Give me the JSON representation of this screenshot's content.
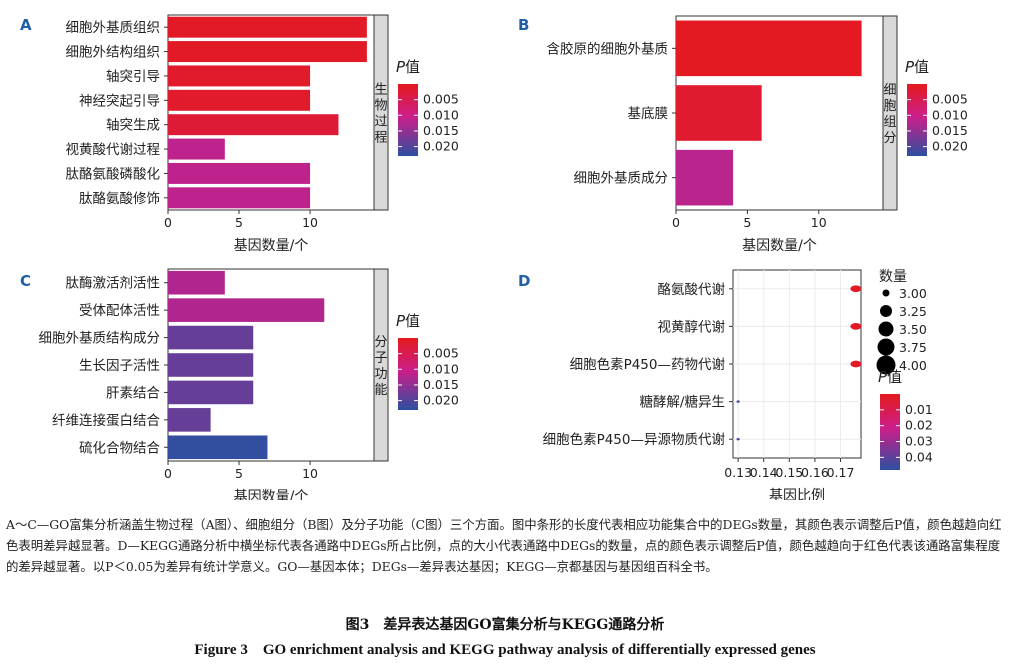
{
  "chart_data": [
    {
      "panel_label": "A",
      "type": "bar",
      "orientation": "horizontal",
      "facet_label": "生物过程",
      "categories": [
        "细胞外基质组织",
        "细胞外结构组织",
        "轴突引导",
        "神经突起引导",
        "轴突生成",
        "视黄酸代谢过程",
        "肽酪氨酸磷酸化",
        "肽酪氨酸修饰"
      ],
      "values": [
        14,
        14,
        10,
        10,
        12,
        4,
        10,
        10
      ],
      "p_values": [
        0.0008,
        0.0008,
        0.0015,
        0.0015,
        0.0025,
        0.0115,
        0.0115,
        0.0115
      ],
      "xlabel": "基因数量/个",
      "xlim": [
        0,
        14.5
      ],
      "xticks": [
        "0",
        "5",
        "10"
      ],
      "legend": {
        "title": "P值",
        "ticks": [
          "0.005",
          "0.010",
          "0.015",
          "0.020"
        ],
        "range": [
          0.0,
          0.023
        ]
      }
    },
    {
      "panel_label": "B",
      "type": "bar",
      "orientation": "horizontal",
      "facet_label": "细胞组分",
      "categories": [
        "含胶原的细胞外基质",
        "基底膜",
        "细胞外基质成分"
      ],
      "values": [
        13,
        6,
        4
      ],
      "p_values": [
        0.0005,
        0.0018,
        0.0118
      ],
      "xlabel": "基因数量/个",
      "xlim": [
        0,
        14.5
      ],
      "xticks": [
        "0",
        "5",
        "10"
      ],
      "legend": {
        "title": "P值",
        "ticks": [
          "0.005",
          "0.010",
          "0.015",
          "0.020"
        ],
        "range": [
          0.0,
          0.023
        ]
      }
    },
    {
      "panel_label": "C",
      "type": "bar",
      "orientation": "horizontal",
      "facet_label": "分子功能",
      "categories": [
        "肽酶激活剂活性",
        "受体配体活性",
        "细胞外基质结构成分",
        "生长因子活性",
        "肝素结合",
        "纤维连接蛋白结合",
        "硫化合物结合"
      ],
      "values": [
        4,
        11,
        6,
        6,
        6,
        3,
        7
      ],
      "p_values": [
        0.0125,
        0.0125,
        0.0185,
        0.0185,
        0.0185,
        0.0185,
        0.0225
      ],
      "xlabel": "基因数量/个",
      "xlim": [
        0,
        14.5
      ],
      "xticks": [
        "0",
        "5",
        "10"
      ],
      "legend": {
        "title": "P值",
        "ticks": [
          "0.005",
          "0.010",
          "0.015",
          "0.020"
        ],
        "range": [
          0.0,
          0.023
        ]
      }
    },
    {
      "panel_label": "D",
      "type": "scatter",
      "categories": [
        "酪氨酸代谢",
        "视黄醇代谢",
        "细胞色素P450—药物代谢",
        "糖酵解/糖异生",
        "细胞色素P450—异源物质代谢"
      ],
      "x": [
        0.176,
        0.176,
        0.176,
        0.13,
        0.13
      ],
      "size": [
        3,
        3,
        3,
        1,
        1
      ],
      "p_values": [
        0.002,
        0.002,
        0.002,
        0.045,
        0.045
      ],
      "xlabel": "基因比例",
      "xlim": [
        0.128,
        0.178
      ],
      "xticks": [
        "0.13",
        "0.14",
        "0.15",
        "0.16",
        "0.17"
      ],
      "size_legend": {
        "title": "数量",
        "labels": [
          "3.00",
          "3.25",
          "3.50",
          "3.75",
          "4.00"
        ],
        "values": [
          3.0,
          3.25,
          3.5,
          3.75,
          4.0
        ]
      },
      "color_legend": {
        "title": "P值",
        "ticks": [
          "0.01",
          "0.02",
          "0.03",
          "0.04"
        ],
        "range": [
          0.0,
          0.048
        ]
      }
    }
  ],
  "caption": {
    "text": "A～C—GO富集分析涵盖生物过程（A图）、细胞组分（B图）及分子功能（C图）三个方面。图中条形的长度代表相应功能集合中的DEGs数量，其颜色表示调整后P值，颜色越趋向红色表明差异越显著。D—KEGG通路分析中横坐标代表各通路中DEGs所占比例，点的大小代表通路中DEGs的数量，点的颜色表示调整后P值，颜色越趋向于红色代表该通路富集程度的差异越显著。以P＜0.05为差异有统计学意义。GO—基因本体；DEGs—差异表达基因；KEGG—京都基因与基因组百科全书。",
    "title_cn": "图3　差异表达基因GO富集分析与KEGG通路分析",
    "title_en": "Figure 3　GO enrichment analysis and KEGG pathway analysis of differentially expressed genes"
  },
  "colors": {
    "scale_low_p": "#E41A1C",
    "scale_mid_p": "#CC1E8A",
    "scale_high_p": "#2D4FA0",
    "panel_label": "#1F5FA8",
    "facet_strip": "#D9D9D9",
    "grid": "#EBEBEB"
  }
}
